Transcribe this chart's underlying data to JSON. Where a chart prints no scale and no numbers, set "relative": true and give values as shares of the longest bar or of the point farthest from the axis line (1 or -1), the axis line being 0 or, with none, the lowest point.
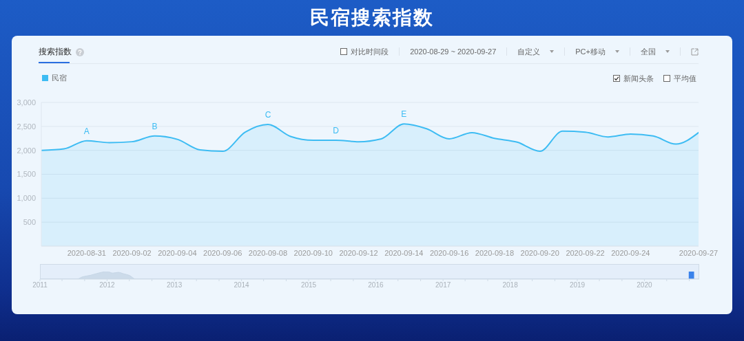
{
  "chart_data": [
    {
      "type": "area",
      "title": "民宿搜索指数",
      "subtitle": "搜索指数",
      "x": [
        "2020-08-29",
        "2020-08-30",
        "2020-08-31",
        "2020-09-01",
        "2020-09-02",
        "2020-09-03",
        "2020-09-04",
        "2020-09-05",
        "2020-09-06",
        "2020-09-07",
        "2020-09-08",
        "2020-09-09",
        "2020-09-10",
        "2020-09-11",
        "2020-09-12",
        "2020-09-13",
        "2020-09-14",
        "2020-09-15",
        "2020-09-16",
        "2020-09-17",
        "2020-09-18",
        "2020-09-19",
        "2020-09-20",
        "2020-09-21",
        "2020-09-22",
        "2020-09-23",
        "2020-09-24",
        "2020-09-25",
        "2020-09-26",
        "2020-09-27"
      ],
      "series": [
        {
          "name": "民宿",
          "color": "#3dbcf3",
          "values": [
            2000,
            2030,
            2200,
            2160,
            2180,
            2300,
            2230,
            2010,
            1980,
            2380,
            2540,
            2290,
            2210,
            2210,
            2180,
            2240,
            2550,
            2450,
            2240,
            2370,
            2250,
            2170,
            1980,
            2400,
            2380,
            2280,
            2340,
            2300,
            2130,
            2370
          ]
        }
      ],
      "xlim": [
        "2020-08-29",
        "2020-09-27"
      ],
      "xticks": [
        "2020-08-31",
        "2020-09-02",
        "2020-09-04",
        "2020-09-06",
        "2020-09-08",
        "2020-09-10",
        "2020-09-12",
        "2020-09-14",
        "2020-09-16",
        "2020-09-18",
        "2020-09-20",
        "2020-09-22",
        "2020-09-24",
        "2020-09-27"
      ],
      "ylim": [
        0,
        3000
      ],
      "yticks": [
        500,
        {
          "value": 1000,
          "label": "1,000"
        },
        {
          "value": 1500,
          "label": "1,500"
        },
        {
          "value": 2000,
          "label": "2,000"
        },
        {
          "value": 2500,
          "label": "2,500"
        },
        {
          "value": 3000,
          "label": "3,000"
        }
      ],
      "grid": "y",
      "legend": "top left",
      "annotations": [
        "对比时间段",
        "2020-08-29 ~ 2020-09-27",
        "自定义",
        "PC+移动",
        "全国",
        "新闻头条",
        "平均值",
        {
          "text": "A",
          "x": "2020-08-31",
          "y": 2200
        },
        {
          "text": "B",
          "x": "2020-09-03",
          "y": 2300
        },
        {
          "text": "C",
          "x": "2020-09-08",
          "y": 2540
        },
        {
          "text": "D",
          "x": "2020-09-11",
          "y": 2210
        },
        {
          "text": "E",
          "x": "2020-09-14",
          "y": 2550
        }
      ]
    },
    {
      "type": "area",
      "relative": true,
      "color": "#c6d6e6",
      "x": [
        "2011-01-01",
        "2011-07-20",
        "2011-08-20",
        "2011-10-01",
        "2011-11-15",
        "2012-01-01",
        "2012-02-01",
        "2012-03-01",
        "2012-04-01",
        "2012-05-01",
        "2012-06-05",
        "2020-09-27"
      ],
      "values": [
        0,
        0,
        0.3,
        0.5,
        0.8,
        1,
        0.8,
        0.9,
        0.7,
        0.5,
        0,
        0
      ],
      "xlim": [
        "2011-01-01",
        "2020-10-25"
      ],
      "xticks": [
        "2011",
        {
          "value": "2011-05",
          "label": null
        },
        {
          "value": "2011-09",
          "label": null
        },
        "2012",
        {
          "value": "2012-05",
          "label": null
        },
        {
          "value": "2012-09",
          "label": null
        },
        "2013",
        {
          "value": "2013-05",
          "label": null
        },
        {
          "value": "2013-09",
          "label": null
        },
        "2014",
        {
          "value": "2014-05",
          "label": null
        },
        {
          "value": "2014-09",
          "label": null
        },
        "2015",
        {
          "value": "2015-05",
          "label": null
        },
        {
          "value": "2015-09",
          "label": null
        },
        "2016",
        {
          "value": "2016-05",
          "label": null
        },
        {
          "value": "2016-09",
          "label": null
        },
        "2017",
        {
          "value": "2017-05",
          "label": null
        },
        {
          "value": "2017-09",
          "label": null
        },
        "2018",
        {
          "value": "2018-05",
          "label": null
        },
        {
          "value": "2018-09",
          "label": null
        },
        "2019",
        {
          "value": "2019-05",
          "label": null
        },
        {
          "value": "2019-09",
          "label": null
        },
        "2020",
        {
          "value": "2020-05",
          "label": null
        },
        {
          "value": "2020-09",
          "label": null
        }
      ],
      "tick_labels": "x",
      "bands": [
        {
          "axis": "x",
          "from": "2020-08-29",
          "to": "2020-09-27",
          "color": "#1b6fe8"
        }
      ]
    }
  ]
}
